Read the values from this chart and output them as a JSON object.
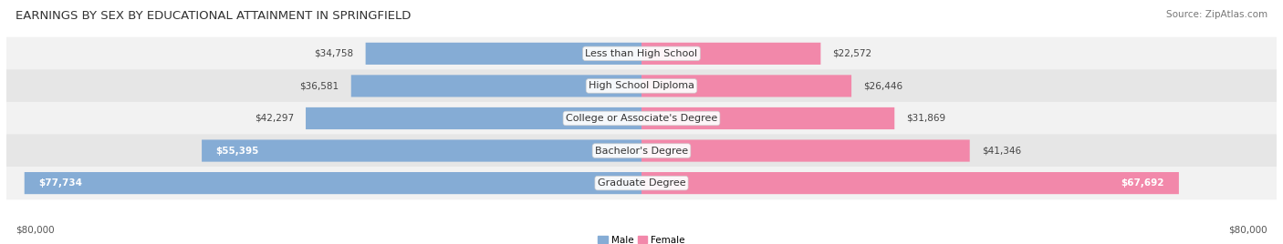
{
  "title": "EARNINGS BY SEX BY EDUCATIONAL ATTAINMENT IN SPRINGFIELD",
  "source": "Source: ZipAtlas.com",
  "categories": [
    "Less than High School",
    "High School Diploma",
    "College or Associate's Degree",
    "Bachelor's Degree",
    "Graduate Degree"
  ],
  "male_values": [
    34758,
    36581,
    42297,
    55395,
    77734
  ],
  "female_values": [
    22572,
    26446,
    31869,
    41346,
    67692
  ],
  "male_color": "#85acd5",
  "female_color": "#f288aa",
  "row_bg_colors": [
    "#f2f2f2",
    "#e6e6e6"
  ],
  "max_value": 80000,
  "xlabel_left": "$80,000",
  "xlabel_right": "$80,000",
  "legend_male": "Male",
  "legend_female": "Female",
  "title_fontsize": 9.5,
  "label_fontsize": 8.0,
  "value_fontsize": 7.5,
  "axis_fontsize": 7.5,
  "source_fontsize": 7.5,
  "male_white_threshold": 50000,
  "female_white_threshold": 60000
}
